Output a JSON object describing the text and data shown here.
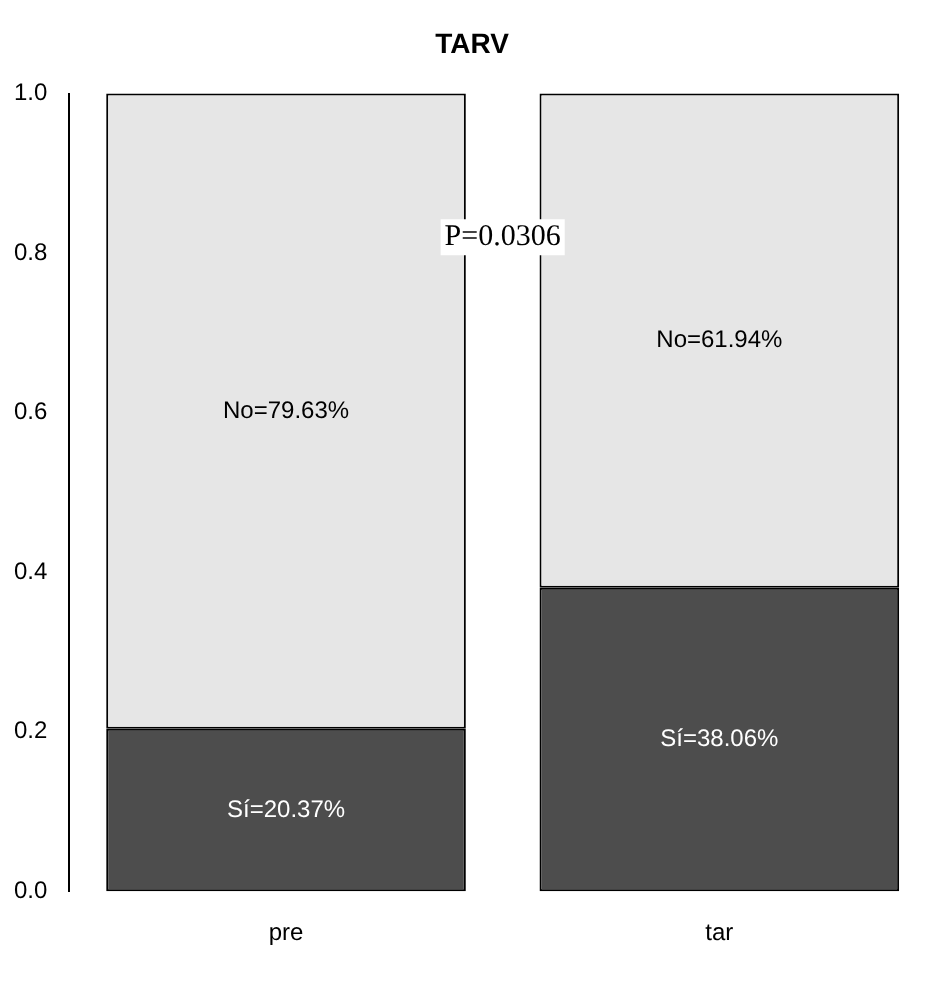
{
  "chart_data": {
    "type": "bar",
    "title": "TARV",
    "categories": [
      "pre",
      "tar"
    ],
    "stacked": true,
    "series": [
      {
        "color": "#4d4d4d",
        "values": [
          0.2037,
          0.3806
        ],
        "value_labels": [
          "Sí=20.37%",
          "Sí=38.06%"
        ]
      },
      {
        "color": "#e6e6e6",
        "values": [
          0.7963,
          0.6194
        ],
        "value_labels": [
          "No=79.63%",
          "No=61.94%"
        ]
      }
    ],
    "ylim": [
      0,
      1
    ],
    "yticks": [
      {
        "value": 0,
        "label": "0.0"
      },
      {
        "value": 0.2,
        "label": "0.2"
      },
      {
        "value": 0.4,
        "label": "0.4"
      },
      {
        "value": 0.6,
        "label": "0.6"
      },
      {
        "value": 0.8,
        "label": "0.8"
      },
      {
        "value": 1,
        "label": "1.0"
      }
    ],
    "grid": false,
    "legend": false,
    "annotations": [
      "P=0.0306"
    ]
  }
}
